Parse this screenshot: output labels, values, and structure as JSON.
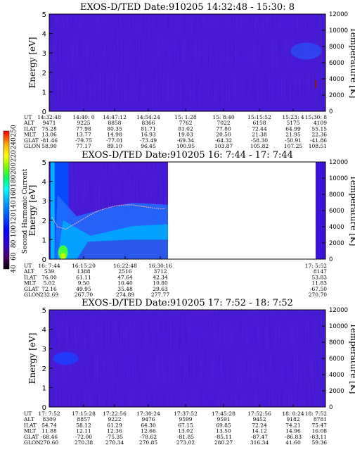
{
  "chart_data": [
    {
      "type": "heatmap",
      "title": "EXOS-D/TED   Date:910205  14:32:48 - 15:30: 8",
      "ylabel": "Energy [eV]",
      "y2label": "Temperature [K]",
      "ylim": [
        0,
        5
      ],
      "y2lim": [
        0,
        12000
      ],
      "yticks": [
        "0",
        "1",
        "2",
        "3",
        "4",
        "5"
      ],
      "y2ticks": [
        "0",
        "2000",
        "4000",
        "6000",
        "8000",
        "10000",
        "12000"
      ],
      "data_extent": [
        0,
        1
      ],
      "ephemeris": {
        "labels": [
          "UT",
          "ALT",
          "ILAT",
          "MLT",
          "GLAT",
          "GLON"
        ],
        "columns": [
          [
            "14:32:48",
            "9471",
            "75.28",
            "13.06",
            "-81.46",
            "58.90"
          ],
          [
            "14:40: 0",
            "9225",
            "77.98",
            "13.77",
            "-79.75",
            "77.17"
          ],
          [
            "14:47:12",
            "8858",
            "80.35",
            "14.98",
            "-77.01",
            "89.10"
          ],
          [
            "14:54:24",
            "8366",
            "81.71",
            "16.93",
            "-73.49",
            "96.45"
          ],
          [
            "15: 1:28",
            "7762",
            "81.02",
            "19.03",
            "-69.34",
            "100.95"
          ],
          [
            "15: 8:40",
            "7022",
            "77.80",
            "20.50",
            "-64.32",
            "103.87"
          ],
          [
            "15:15:52",
            "6158",
            "72.44",
            "21.38",
            "-58.30",
            "105.82"
          ],
          [
            "15:23: 4",
            "5175",
            "64.99",
            "21.95",
            "-50.91",
            "107.25"
          ],
          [
            "15:30: 8",
            "4109",
            "55.15",
            "22.36",
            "-41.86",
            "108.51"
          ]
        ]
      }
    },
    {
      "type": "heatmap",
      "title": "EXOS-D/TED   Date:910205  16: 7:44 - 17: 7:44",
      "ylabel": "Energy [eV]",
      "y2label": "Temperature [K]",
      "ylim": [
        0,
        5
      ],
      "y2lim": [
        0,
        12000
      ],
      "yticks": [
        "0",
        "1",
        "2",
        "3",
        "4",
        "5"
      ],
      "y2ticks": [
        "0",
        "2000",
        "4000",
        "6000",
        "8000",
        "10000",
        "12000"
      ],
      "data_extent": [
        0,
        0.43
      ],
      "temperature_trace": [
        {
          "x": 0.01,
          "t": 5200
        },
        {
          "x": 0.03,
          "t": 4000
        },
        {
          "x": 0.06,
          "t": 3700
        },
        {
          "x": 0.09,
          "t": 4300
        },
        {
          "x": 0.12,
          "t": 4900
        },
        {
          "x": 0.15,
          "t": 5500
        },
        {
          "x": 0.18,
          "t": 6000
        },
        {
          "x": 0.21,
          "t": 6300
        },
        {
          "x": 0.24,
          "t": 6600
        },
        {
          "x": 0.27,
          "t": 6700
        },
        {
          "x": 0.3,
          "t": 6700
        },
        {
          "x": 0.34,
          "t": 6500
        },
        {
          "x": 0.38,
          "t": 6300
        },
        {
          "x": 0.42,
          "t": 6200
        }
      ],
      "ephemeris": {
        "labels": [
          "UT",
          "ALT",
          "ILAT",
          "MLT",
          "GLAT",
          "GLON"
        ],
        "columns": [
          [
            "16: 7:44",
            "539",
            "76.00",
            "5.02",
            "72.16",
            "232.69"
          ],
          [
            "16:15:20",
            "1388",
            "61.11",
            "9.50",
            "49.95",
            "267.70"
          ],
          [
            "16:22:48",
            "2516",
            "47.64",
            "10.40",
            "35.48",
            "274.89"
          ],
          [
            "16:30:16",
            "3712",
            "42.34",
            "10.80",
            "29.63",
            "277.77"
          ],
          [
            "17: 5:52",
            "8147",
            "53.83",
            "11.83",
            "-67.50",
            "270.70"
          ]
        ]
      },
      "colorbar": {
        "label": "Second Harmonic Current",
        "ticks": [
          "40",
          "60",
          "80",
          "100",
          "120",
          "140",
          "160",
          "180",
          "200",
          "220",
          "240",
          "250"
        ],
        "colors": [
          "#000000",
          "#4a0060",
          "#3a00c0",
          "#0000ff",
          "#0060ff",
          "#00b0ff",
          "#00ffff",
          "#00ff60",
          "#80ff00",
          "#ffff00",
          "#ffb000",
          "#ff4000",
          "#ff0000"
        ]
      }
    },
    {
      "type": "heatmap",
      "title": "EXOS-D/TED   Date:910205  17: 7:52 - 18: 7:52",
      "ylabel": "Energy [eV]",
      "y2label": "Temperature [K]",
      "ylim": [
        0,
        5
      ],
      "y2lim": [
        0,
        12000
      ],
      "yticks": [
        "0",
        "1",
        "2",
        "3",
        "4",
        "5"
      ],
      "y2ticks": [
        "0",
        "2000",
        "4000",
        "6000",
        "8000",
        "10000",
        "12000"
      ],
      "data_extent": [
        0,
        1
      ],
      "ephemeris": {
        "labels": [
          "UT",
          "ALT",
          "ILAT",
          "MLT",
          "GLAT",
          "GLON"
        ],
        "columns": [
          [
            "17: 7:52",
            "8309",
            "54.74",
            "11.88",
            "-68.46",
            "270.60"
          ],
          [
            "17:15:28",
            "8857",
            "58.12",
            "12.11",
            "-72.00",
            "270.38"
          ],
          [
            "17:22:56",
            "9222",
            "61.29",
            "12.36",
            "-75.35",
            "270.34"
          ],
          [
            "17:30:24",
            "9476",
            "64.30",
            "12.66",
            "-78.62",
            "270.85"
          ],
          [
            "17:37:52",
            "9599",
            "67.15",
            "13.02",
            "-81.85",
            "273.02"
          ],
          [
            "17:45:28",
            "9591",
            "69.85",
            "13.50",
            "-85.11",
            "280.27"
          ],
          [
            "17:52:56",
            "9452",
            "72.24",
            "14.12",
            "-87.47",
            "316.34"
          ],
          [
            "18: 0:24",
            "9182",
            "74.21",
            "14.96",
            "-86.83",
            "41.60"
          ],
          [
            "18: 7:52",
            "8781",
            "75.47",
            "16.08",
            "-83.11",
            "59.36"
          ]
        ]
      }
    }
  ]
}
